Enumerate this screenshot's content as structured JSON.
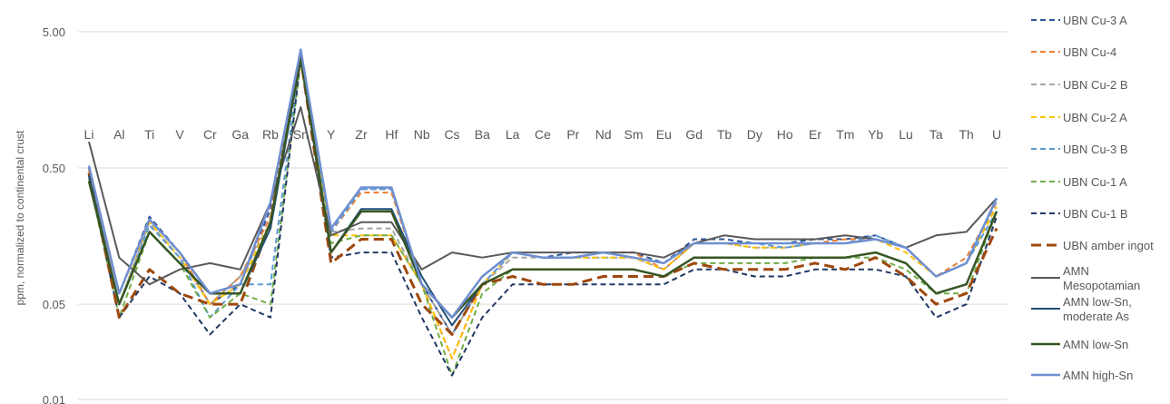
{
  "chart_data": {
    "type": "line",
    "ylabel": "ppm, normalized to continental crust",
    "yscale": "log",
    "ylim": [
      0.01,
      5
    ],
    "yticks": [
      5,
      0.5,
      0.05,
      0.01
    ],
    "ytick_labels": [
      "5.00",
      "0.50",
      "0.05",
      "0.01"
    ],
    "grid": true,
    "legend": "right",
    "categories": [
      "Li",
      "Al",
      "Ti",
      "V",
      "Cr",
      "Ga",
      "Rb",
      "Sn",
      "Y",
      "Zr",
      "Hf",
      "Nb",
      "Cs",
      "Ba",
      "La",
      "Ce",
      "Pr",
      "Nd",
      "Sm",
      "Eu",
      "Gd",
      "Tb",
      "Dy",
      "Ho",
      "Er",
      "Tm",
      "Yb",
      "Lu",
      "Ta",
      "Th",
      "U"
    ],
    "series": [
      {
        "name": "UBN Cu-3 A",
        "color": "#2e5597",
        "dash": "dash",
        "width": 2,
        "values": [
          0.5,
          0.06,
          0.22,
          0.12,
          0.05,
          0.07,
          0.25,
          3.6,
          0.18,
          0.35,
          0.35,
          0.07,
          0.03,
          0.07,
          0.12,
          0.11,
          0.12,
          0.12,
          0.12,
          0.1,
          0.15,
          0.15,
          0.14,
          0.14,
          0.15,
          0.15,
          0.16,
          0.13,
          0.08,
          0.1,
          0.3
        ]
      },
      {
        "name": "UBN Cu-4",
        "color": "#ed7d31",
        "dash": "dash",
        "width": 2,
        "values": [
          0.48,
          0.06,
          0.21,
          0.12,
          0.05,
          0.08,
          0.22,
          3.4,
          0.17,
          0.33,
          0.33,
          0.07,
          0.02,
          0.07,
          0.12,
          0.11,
          0.11,
          0.12,
          0.12,
          0.09,
          0.14,
          0.14,
          0.14,
          0.14,
          0.14,
          0.15,
          0.15,
          0.13,
          0.08,
          0.11,
          0.28
        ]
      },
      {
        "name": "UBN Cu-2 B",
        "color": "#a5a5a5",
        "dash": "dash",
        "width": 2,
        "values": [
          0.4,
          0.05,
          0.2,
          0.11,
          0.05,
          0.08,
          0.2,
          3.2,
          0.17,
          0.18,
          0.18,
          0.07,
          0.03,
          0.07,
          0.11,
          0.11,
          0.11,
          0.11,
          0.11,
          0.09,
          0.14,
          0.14,
          0.13,
          0.13,
          0.14,
          0.14,
          0.15,
          0.13,
          0.08,
          0.1,
          0.28
        ]
      },
      {
        "name": "UBN Cu-2 A",
        "color": "#ffc000",
        "dash": "dash",
        "width": 2,
        "values": [
          0.45,
          0.05,
          0.2,
          0.11,
          0.05,
          0.07,
          0.2,
          3.3,
          0.16,
          0.16,
          0.16,
          0.07,
          0.02,
          0.07,
          0.12,
          0.11,
          0.11,
          0.11,
          0.11,
          0.09,
          0.14,
          0.14,
          0.13,
          0.13,
          0.14,
          0.14,
          0.15,
          0.12,
          0.08,
          0.1,
          0.26
        ]
      },
      {
        "name": "UBN Cu-3 B",
        "color": "#5b9bd5",
        "dash": "dash",
        "width": 2,
        "values": [
          0.44,
          0.05,
          0.19,
          0.11,
          0.04,
          0.07,
          0.07,
          3.5,
          0.17,
          0.35,
          0.35,
          0.07,
          0.04,
          0.07,
          0.12,
          0.11,
          0.11,
          0.12,
          0.11,
          0.1,
          0.14,
          0.14,
          0.14,
          0.13,
          0.14,
          0.14,
          0.16,
          0.13,
          0.08,
          0.1,
          0.24
        ]
      },
      {
        "name": "UBN Cu-1 A",
        "color": "#70ad47",
        "dash": "dash",
        "width": 2,
        "values": [
          0.42,
          0.04,
          0.17,
          0.1,
          0.04,
          0.06,
          0.05,
          3.0,
          0.14,
          0.16,
          0.16,
          0.07,
          0.015,
          0.06,
          0.09,
          0.09,
          0.09,
          0.09,
          0.09,
          0.08,
          0.1,
          0.1,
          0.1,
          0.1,
          0.11,
          0.11,
          0.11,
          0.09,
          0.06,
          0.06,
          0.24
        ]
      },
      {
        "name": "UBN Cu-1 B",
        "color": "#203864",
        "dash": "dash",
        "width": 2,
        "values": [
          0.44,
          0.04,
          0.08,
          0.06,
          0.03,
          0.05,
          0.04,
          3.2,
          0.11,
          0.12,
          0.12,
          0.04,
          0.015,
          0.04,
          0.07,
          0.07,
          0.07,
          0.07,
          0.07,
          0.07,
          0.09,
          0.09,
          0.08,
          0.08,
          0.09,
          0.09,
          0.09,
          0.08,
          0.04,
          0.05,
          0.22
        ]
      },
      {
        "name": "UBN amber ingot",
        "color": "#9e480e",
        "dash": "bigdash",
        "width": 3,
        "values": [
          0.46,
          0.04,
          0.09,
          0.06,
          0.05,
          0.05,
          0.2,
          3.2,
          0.1,
          0.15,
          0.15,
          0.05,
          0.03,
          0.07,
          0.08,
          0.07,
          0.07,
          0.08,
          0.08,
          0.08,
          0.1,
          0.09,
          0.09,
          0.09,
          0.1,
          0.09,
          0.11,
          0.08,
          0.05,
          0.06,
          0.18
        ]
      },
      {
        "name": "AMN Mesopotamian",
        "color": "#595959",
        "dash": "solid",
        "width": 2,
        "values": [
          0.78,
          0.11,
          0.07,
          0.09,
          0.1,
          0.09,
          0.28,
          1.4,
          0.16,
          0.2,
          0.2,
          0.09,
          0.12,
          0.11,
          0.12,
          0.12,
          0.12,
          0.12,
          0.12,
          0.11,
          0.14,
          0.16,
          0.15,
          0.15,
          0.15,
          0.16,
          0.15,
          0.13,
          0.16,
          0.17,
          0.3
        ]
      },
      {
        "name": "AMN low-Sn, moderate As",
        "color": "#1f4e79",
        "dash": "solid",
        "width": 2,
        "values": [
          0.44,
          0.05,
          0.17,
          0.1,
          0.06,
          0.06,
          0.18,
          3.2,
          0.12,
          0.25,
          0.25,
          0.08,
          0.035,
          0.07,
          0.09,
          0.09,
          0.09,
          0.09,
          0.09,
          0.08,
          0.11,
          0.11,
          0.11,
          0.11,
          0.11,
          0.11,
          0.12,
          0.1,
          0.06,
          0.07,
          0.24
        ]
      },
      {
        "name": "AMN low-Sn",
        "color": "#375623",
        "dash": "solid",
        "width": 2.5,
        "values": [
          0.4,
          0.05,
          0.17,
          0.1,
          0.06,
          0.06,
          0.2,
          3.3,
          0.12,
          0.24,
          0.24,
          0.07,
          0.04,
          0.07,
          0.09,
          0.09,
          0.09,
          0.09,
          0.09,
          0.08,
          0.11,
          0.11,
          0.11,
          0.11,
          0.11,
          0.11,
          0.12,
          0.1,
          0.06,
          0.07,
          0.24
        ]
      },
      {
        "name": "AMN high-Sn",
        "color": "#6f8fd1",
        "dash": "solid",
        "width": 2.5,
        "values": [
          0.52,
          0.06,
          0.21,
          0.12,
          0.06,
          0.07,
          0.28,
          3.7,
          0.18,
          0.36,
          0.36,
          0.07,
          0.04,
          0.08,
          0.12,
          0.11,
          0.11,
          0.12,
          0.11,
          0.1,
          0.14,
          0.14,
          0.14,
          0.14,
          0.14,
          0.14,
          0.15,
          0.13,
          0.08,
          0.1,
          0.3
        ]
      }
    ]
  }
}
